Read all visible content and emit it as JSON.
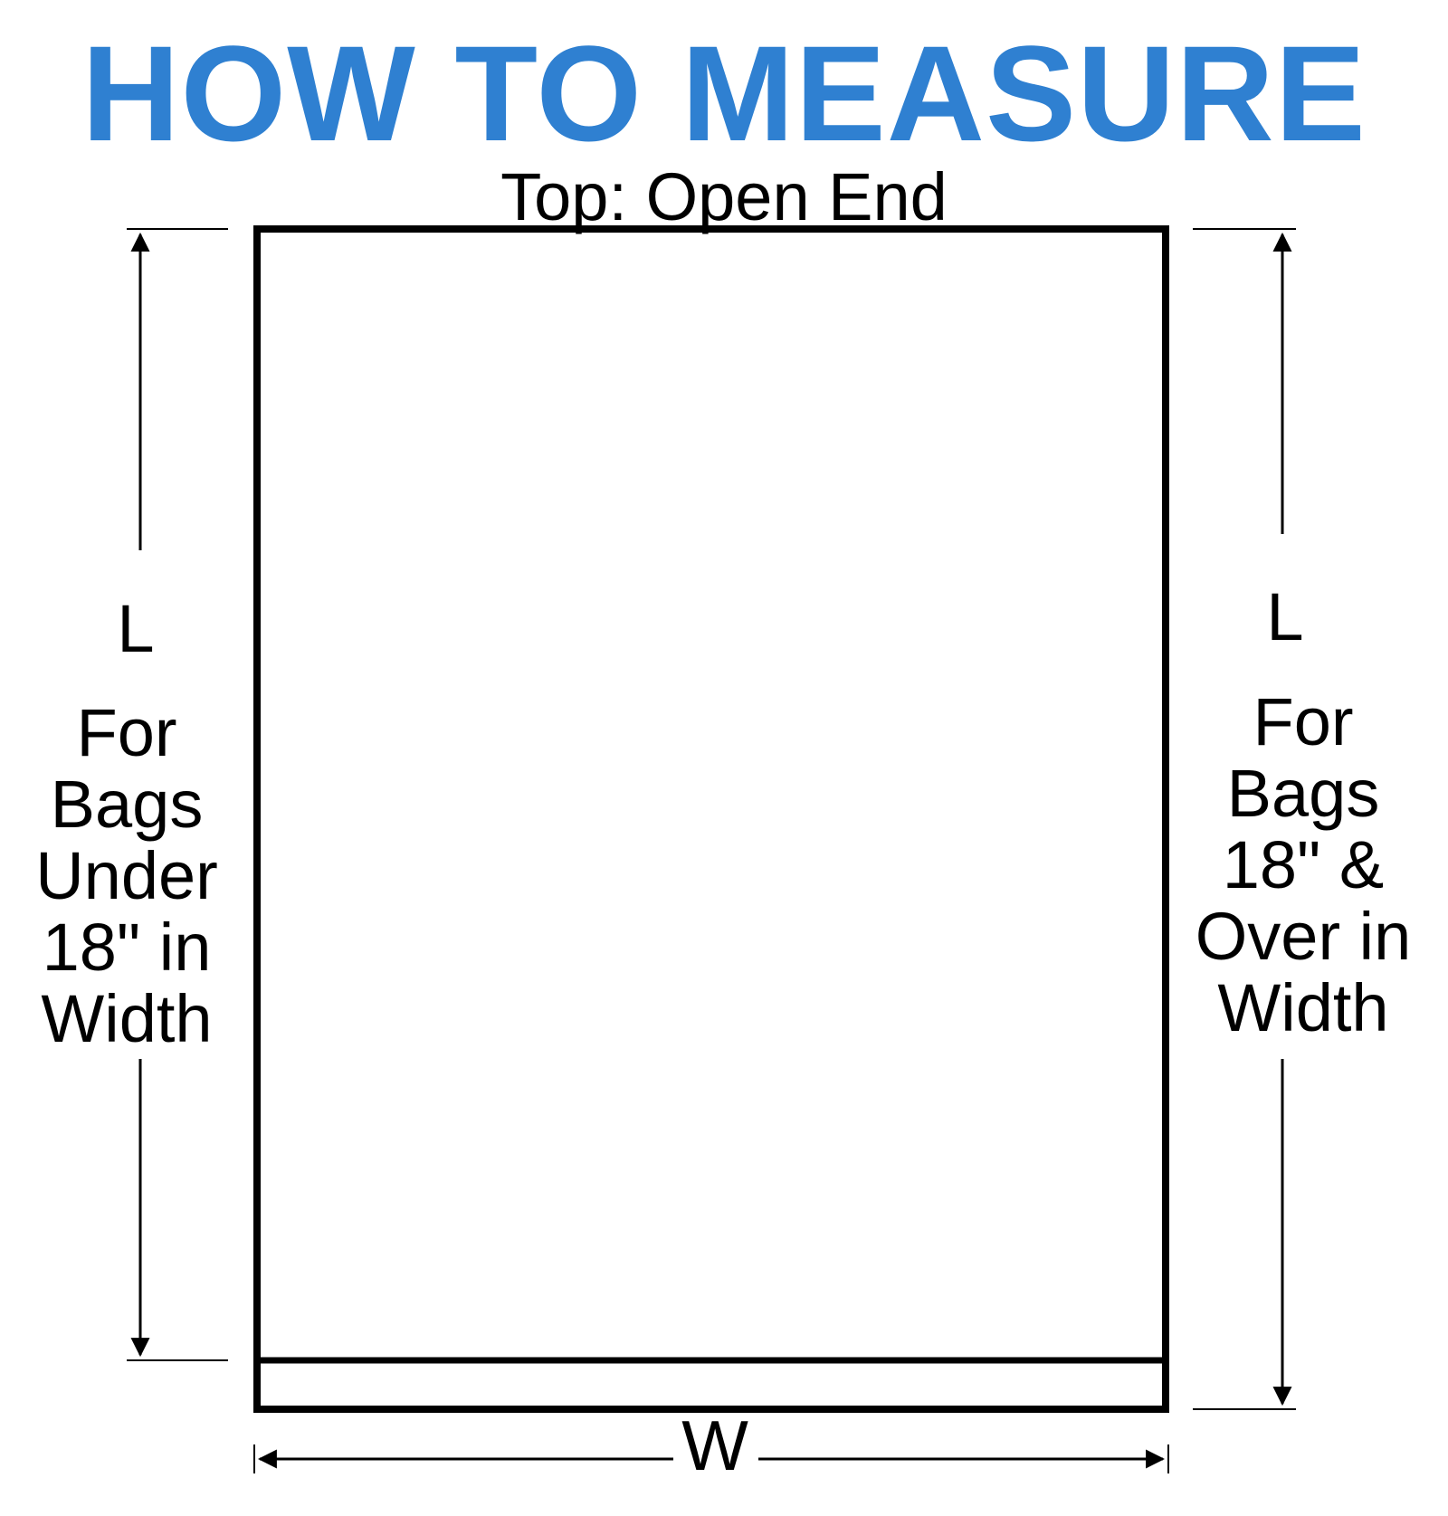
{
  "title": "HOW TO MEASURE",
  "top_label": "Top: Open End",
  "left": {
    "dimension": "L",
    "note": "For\nBags\nUnder\n18\" in\nWidth"
  },
  "right": {
    "dimension": "L",
    "note": "For\nBags\n18\" &\nOver in\nWidth"
  },
  "bottom": {
    "dimension": "W"
  },
  "colors": {
    "title": "#2f80d1",
    "lines": "#000000",
    "background": "#ffffff"
  }
}
